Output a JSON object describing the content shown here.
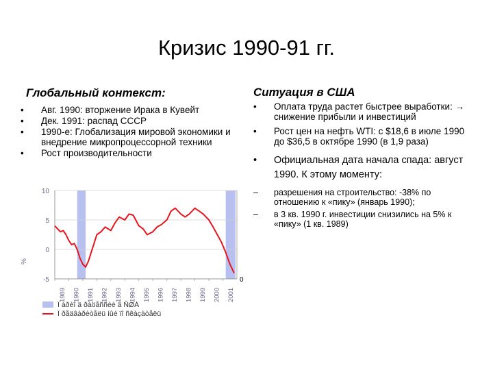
{
  "slide": {
    "title": "Кризис 1990-91 гг."
  },
  "left": {
    "heading": "Глобальный контекст:",
    "items": [
      "Авг. 1990: вторжение Ирака в Кувейт",
      "Дек. 1991: распад СССР",
      "1990-е: Глобализация мировой экономики и внедрение микропроцессорной техники",
      "Рост производительности"
    ],
    "bullet": "•"
  },
  "right": {
    "heading": "Ситуация в США",
    "items": [
      "Оплата труда растет быстрее выработки: → снижение прибыли и инвестиций",
      "Рост цен на нефть WTI: с $18,6 в июле 1990 до $36,5 в октябре 1990 (в 1,9 раза)",
      "Официальная дата начала спада: август 1990. К этому моменту:"
    ],
    "subitems": [
      "разрешения на строительство: -38% по отношению к «пику» (январь 1990);",
      "в 3 кв. 1990 г. инвестиции снизились на 5% к «пику» (1 кв. 1989)"
    ],
    "bullet": "•",
    "dash": "–"
  },
  "chart_data": {
    "type": "line",
    "title": "",
    "xlabel": "",
    "ylabel": "",
    "y_axis_glyph": "%",
    "right_axis_label": "0",
    "ylim": [
      -5,
      10
    ],
    "yticks": [
      -5,
      0,
      5,
      10
    ],
    "categories": [
      "1989",
      "1990",
      "1991",
      "1992",
      "1993",
      "1994",
      "1995",
      "1996",
      "1997",
      "1998",
      "1999",
      "2000",
      "2001"
    ],
    "recession_bands": [
      [
        1990.6,
        1991.2
      ],
      [
        2001.2,
        2001.9
      ]
    ],
    "series": [
      {
        "name": "",
        "color": "#e8141b",
        "x": [
          1989.0,
          1989.2,
          1989.4,
          1989.6,
          1989.8,
          1990.0,
          1990.2,
          1990.4,
          1990.6,
          1990.8,
          1991.0,
          1991.2,
          1991.4,
          1991.6,
          1991.8,
          1992.0,
          1992.3,
          1992.6,
          1993.0,
          1993.3,
          1993.6,
          1994.0,
          1994.3,
          1994.6,
          1995.0,
          1995.3,
          1995.6,
          1996.0,
          1996.3,
          1996.6,
          1997.0,
          1997.3,
          1997.6,
          1998.0,
          1998.3,
          1998.6,
          1999.0,
          1999.3,
          1999.6,
          2000.0,
          2000.3,
          2000.6,
          2000.9,
          2001.2,
          2001.5,
          2001.8
        ],
        "y": [
          4.0,
          3.5,
          3.0,
          3.2,
          2.5,
          1.5,
          0.8,
          1.0,
          0.0,
          -1.5,
          -2.5,
          -3.0,
          -2.0,
          -0.5,
          1.0,
          2.5,
          3.0,
          3.8,
          3.2,
          4.5,
          5.5,
          5.0,
          6.0,
          5.8,
          4.0,
          3.5,
          2.5,
          3.0,
          3.8,
          4.2,
          5.0,
          6.5,
          7.0,
          6.0,
          5.5,
          6.0,
          7.0,
          6.5,
          6.0,
          5.0,
          3.8,
          2.5,
          1.2,
          -0.5,
          -2.5,
          -4.0
        ]
      }
    ],
    "legend": [
      {
        "label": "Ï àðèî ä ðàöåññèè â ÑØÀ",
        "color": "#b8c0ef",
        "kind": "box"
      },
      {
        "label": "Ï ðåäâàðèòåëü íûé ïî ñêàçàòåëü",
        "color": "#e8141b",
        "kind": "line"
      }
    ],
    "colors": {
      "band": "#b8c0ef",
      "grid": "#d0d0d0",
      "axis": "#9a9a9a",
      "tick_text": "#6a6a8a"
    }
  }
}
